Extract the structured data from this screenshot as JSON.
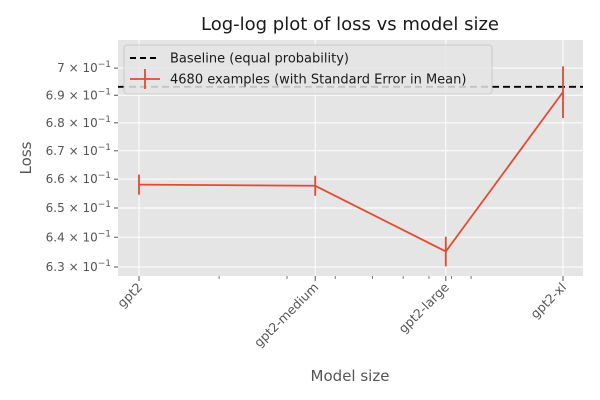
{
  "chart_data": {
    "type": "line",
    "title": "Log-log plot of loss vs model size",
    "xlabel": "Model size",
    "ylabel": "Loss",
    "x_scale": "log",
    "y_scale": "log",
    "categories": [
      "gpt2",
      "gpt2-medium",
      "gpt2-large",
      "gpt2-xl"
    ],
    "model_params": [
      124000000,
      355000000,
      774000000,
      1558000000
    ],
    "ylim": [
      0.627,
      0.7105
    ],
    "yticks": [
      0.63,
      0.64,
      0.65,
      0.66,
      0.67,
      0.68,
      0.69,
      0.7
    ],
    "ytick_labels": [
      {
        "base": "6.3 × 10",
        "exp": "−1"
      },
      {
        "base": "6.4 × 10",
        "exp": "−1"
      },
      {
        "base": "6.5 × 10",
        "exp": "−1"
      },
      {
        "base": "6.6 × 10",
        "exp": "−1"
      },
      {
        "base": "6.7 × 10",
        "exp": "−1"
      },
      {
        "base": "6.8 × 10",
        "exp": "−1"
      },
      {
        "base": "6.9 × 10",
        "exp": "−1"
      },
      {
        "base": "7 × 10",
        "exp": "−1"
      }
    ],
    "grid": true,
    "legend_position": "top-left",
    "baseline": {
      "name": "Baseline (equal probability)",
      "value": 0.6931,
      "color": "#000000",
      "style": "dashed"
    },
    "series": [
      {
        "name": "4680 examples (with Standard Error in Mean)",
        "color": "#E24A33",
        "values": [
          0.6581,
          0.6577,
          0.6352,
          0.6912
        ],
        "errors": [
          0.0035,
          0.0035,
          0.005,
          0.0095
        ]
      }
    ]
  }
}
